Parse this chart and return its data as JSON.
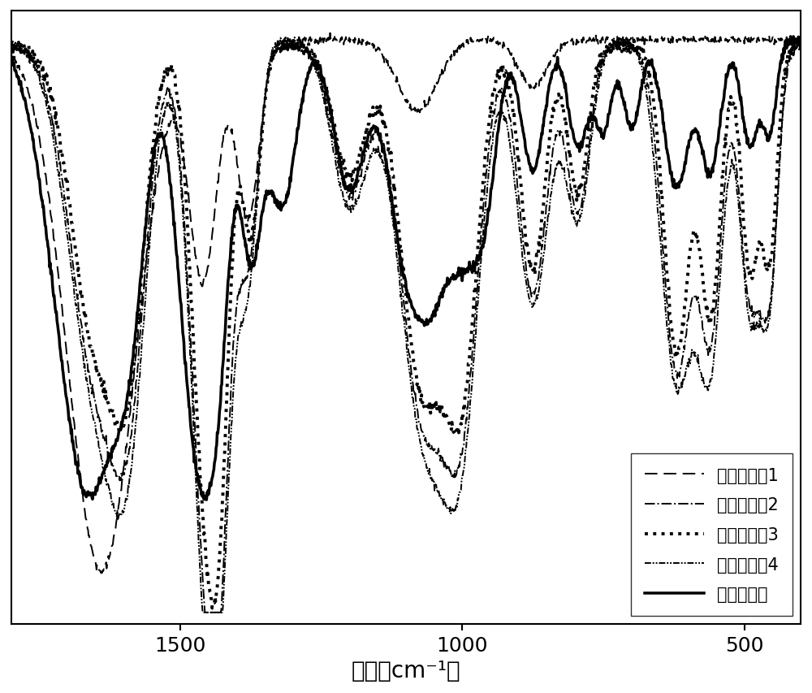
{
  "xlabel": "波数（cm⁻¹）",
  "xlabel_fontsize": 20,
  "tick_fontsize": 18,
  "legend_fontsize": 15,
  "xlim": [
    1800,
    400
  ],
  "xticks": [
    1500,
    1000,
    500
  ],
  "background_color": "#ffffff",
  "line_color": "#000000",
  "linewidth": 1.4,
  "legend_labels": [
    "富磷生物炭1",
    "富磷生物炭2",
    "富磷生物炭3",
    "富磷生物炭4",
    "常规生物炭"
  ],
  "legend_loc": "lower right"
}
